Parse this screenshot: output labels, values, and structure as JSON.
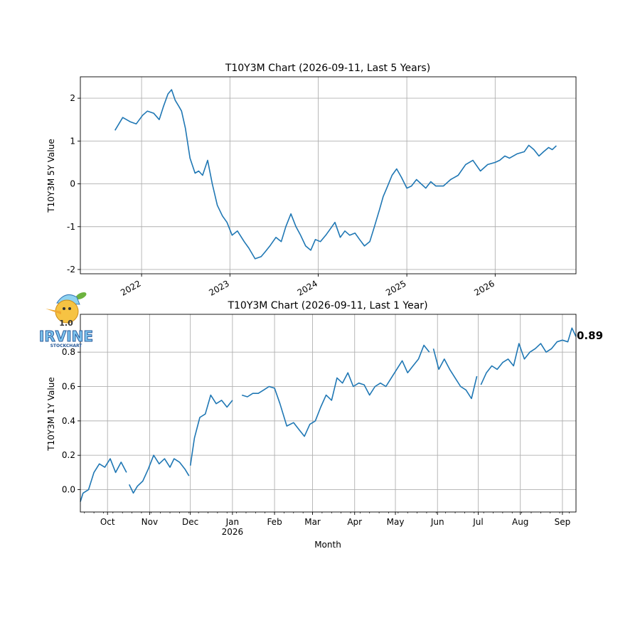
{
  "colors": {
    "line": "#1f77b4",
    "grid": "#b0b0b0"
  },
  "logo": {
    "text_version": "1.0",
    "text_brand": "IRVINE",
    "text_sub": "STOCKCHART"
  },
  "chart_data": [
    {
      "type": "line",
      "title": "T10Y3M Chart (2026-09-11, Last 5 Years)",
      "ylabel": "T10Y3M 5Y Value",
      "xlabel": "",
      "ylim": [
        -2.1,
        2.5
      ],
      "xlim": [
        "2021-04-23",
        "2026-12-01"
      ],
      "yticks": [
        -2,
        -1,
        0,
        1,
        2
      ],
      "xticks": [
        {
          "date": "2022-01-01",
          "label": "2022"
        },
        {
          "date": "2023-01-01",
          "label": "2023"
        },
        {
          "date": "2024-01-01",
          "label": "2024"
        },
        {
          "date": "2025-01-01",
          "label": "2025"
        },
        {
          "date": "2026-01-01",
          "label": "2026"
        }
      ],
      "grid": true,
      "series": [
        {
          "x": [
            "2021-09-13",
            "2021-10-15",
            "2021-11-15",
            "2021-12-10",
            "2022-01-05",
            "2022-01-25",
            "2022-02-20",
            "2022-03-15",
            "2022-04-01",
            "2022-04-20",
            "2022-05-05",
            "2022-05-20",
            "2022-06-05",
            "2022-06-15",
            "2022-07-01",
            "2022-07-20",
            "2022-08-10",
            "2022-08-25",
            "2022-09-10",
            "2022-10-01",
            "2022-10-20",
            "2022-11-10",
            "2022-12-01",
            "2022-12-20",
            "2023-01-10",
            "2023-02-01",
            "2023-03-01",
            "2023-03-20",
            "2023-04-15",
            "2023-05-10",
            "2023-05-25",
            "2023-06-15",
            "2023-07-10",
            "2023-08-01",
            "2023-08-20",
            "2023-09-10",
            "2023-10-01",
            "2023-10-20",
            "2023-11-10",
            "2023-12-01",
            "2023-12-20",
            "2024-01-10",
            "2024-02-01",
            "2024-02-20",
            "2024-03-10",
            "2024-04-01",
            "2024-04-20",
            "2024-05-10",
            "2024-06-01",
            "2024-06-20",
            "2024-07-10",
            "2024-08-01",
            "2024-08-20",
            "2024-09-10",
            "2024-09-25",
            "2024-10-10",
            "2024-11-01",
            "2024-11-20",
            "2024-12-10",
            "2025-01-01",
            "2025-01-20",
            "2025-02-10",
            "2025-03-01",
            "2025-03-20",
            "2025-04-10",
            "2025-05-01",
            "2025-06-01",
            "2025-07-01",
            "2025-08-01",
            "2025-09-01",
            "2025-10-01",
            "2025-11-01",
            "2025-12-01",
            "2026-01-01",
            "2026-01-20",
            "2026-02-10",
            "2026-03-01",
            "2026-04-01",
            "2026-05-01",
            "2026-05-20",
            "2026-06-10",
            "2026-07-01",
            "2026-07-20",
            "2026-08-10",
            "2026-08-25",
            "2026-09-11"
          ],
          "y": [
            1.25,
            1.55,
            1.45,
            1.4,
            1.6,
            1.7,
            1.65,
            1.5,
            1.8,
            2.1,
            2.2,
            1.95,
            1.8,
            1.7,
            1.3,
            0.6,
            0.25,
            0.3,
            0.2,
            0.55,
            0.0,
            -0.5,
            -0.75,
            -0.9,
            -1.2,
            -1.1,
            -1.35,
            -1.5,
            -1.75,
            -1.7,
            -1.6,
            -1.45,
            -1.25,
            -1.35,
            -1.0,
            -0.7,
            -1.0,
            -1.2,
            -1.45,
            -1.55,
            -1.3,
            -1.35,
            -1.2,
            -1.05,
            -0.9,
            -1.25,
            -1.1,
            -1.2,
            -1.15,
            -1.3,
            -1.45,
            -1.35,
            -1.0,
            -0.6,
            -0.3,
            -0.1,
            0.2,
            0.35,
            0.15,
            -0.1,
            -0.05,
            0.1,
            0.0,
            -0.1,
            0.05,
            -0.05,
            -0.05,
            0.1,
            0.2,
            0.45,
            0.55,
            0.3,
            0.45,
            0.5,
            0.55,
            0.65,
            0.6,
            0.7,
            0.75,
            0.9,
            0.8,
            0.65,
            0.75,
            0.85,
            0.8,
            0.89
          ]
        }
      ]
    },
    {
      "type": "line",
      "title": "T10Y3M Chart (2026-09-11, Last 1 Year)",
      "ylabel": "T10Y3M 1Y Value",
      "xlabel": "Month",
      "ylim": [
        -0.13,
        1.02
      ],
      "xlim": [
        "2025-09-11",
        "2026-09-11"
      ],
      "yticks": [
        0.0,
        0.2,
        0.4,
        0.6,
        0.8
      ],
      "xticks": [
        {
          "date": "2025-10-01",
          "label": "Oct",
          "sub": ""
        },
        {
          "date": "2025-11-01",
          "label": "Nov",
          "sub": ""
        },
        {
          "date": "2025-12-01",
          "label": "Dec",
          "sub": ""
        },
        {
          "date": "2026-01-01",
          "label": "Jan",
          "sub": "2026"
        },
        {
          "date": "2026-02-01",
          "label": "Feb",
          "sub": ""
        },
        {
          "date": "2026-03-01",
          "label": "Mar",
          "sub": ""
        },
        {
          "date": "2026-04-01",
          "label": "Apr",
          "sub": ""
        },
        {
          "date": "2026-05-01",
          "label": "May",
          "sub": ""
        },
        {
          "date": "2026-06-01",
          "label": "Jun",
          "sub": ""
        },
        {
          "date": "2026-07-01",
          "label": "Jul",
          "sub": ""
        },
        {
          "date": "2026-08-01",
          "label": "Aug",
          "sub": ""
        },
        {
          "date": "2026-09-01",
          "label": "Sep",
          "sub": ""
        }
      ],
      "grid": true,
      "last_value_label": "0.89",
      "series": [
        {
          "segments": [
            {
              "x": [
                "2025-09-11",
                "2025-09-13",
                "2025-09-17",
                "2025-09-21",
                "2025-09-25",
                "2025-09-29",
                "2025-10-03",
                "2025-10-07",
                "2025-10-11",
                "2025-10-15"
              ],
              "y": [
                -0.07,
                -0.02,
                0.0,
                0.1,
                0.15,
                0.13,
                0.18,
                0.1,
                0.16,
                0.1
              ]
            },
            {
              "x": [
                "2025-10-17",
                "2025-10-20",
                "2025-10-23",
                "2025-10-27",
                "2025-10-31",
                "2025-11-04",
                "2025-11-08",
                "2025-11-12",
                "2025-11-16",
                "2025-11-19",
                "2025-11-23",
                "2025-11-27",
                "2025-11-30"
              ],
              "y": [
                0.03,
                -0.02,
                0.02,
                0.05,
                0.12,
                0.2,
                0.15,
                0.18,
                0.13,
                0.18,
                0.16,
                0.12,
                0.08
              ]
            },
            {
              "x": [
                "2025-12-01",
                "2025-12-04",
                "2025-12-08",
                "2025-12-12",
                "2025-12-16",
                "2025-12-20",
                "2025-12-24",
                "2025-12-28",
                "2026-01-01"
              ],
              "y": [
                0.14,
                0.3,
                0.42,
                0.44,
                0.55,
                0.5,
                0.52,
                0.48,
                0.52
              ]
            },
            {
              "x": [
                "2026-01-08",
                "2026-01-12",
                "2026-01-16",
                "2026-01-20",
                "2026-01-24",
                "2026-01-28",
                "2026-02-01",
                "2026-02-05",
                "2026-02-10",
                "2026-02-15",
                "2026-02-19",
                "2026-02-23",
                "2026-02-27",
                "2026-03-03",
                "2026-03-07",
                "2026-03-11",
                "2026-03-15",
                "2026-03-19",
                "2026-03-23",
                "2026-03-27",
                "2026-03-31",
                "2026-04-04",
                "2026-04-08",
                "2026-04-12",
                "2026-04-16",
                "2026-04-20",
                "2026-04-24",
                "2026-04-28",
                "2026-05-02",
                "2026-05-06",
                "2026-05-10",
                "2026-05-14",
                "2026-05-18",
                "2026-05-22",
                "2026-05-26"
              ],
              "y": [
                0.55,
                0.54,
                0.56,
                0.56,
                0.58,
                0.6,
                0.59,
                0.5,
                0.37,
                0.39,
                0.35,
                0.31,
                0.38,
                0.4,
                0.48,
                0.55,
                0.52,
                0.65,
                0.62,
                0.68,
                0.6,
                0.62,
                0.61,
                0.55,
                0.6,
                0.62,
                0.6,
                0.65,
                0.7,
                0.75,
                0.68,
                0.72,
                0.76,
                0.84,
                0.8
              ]
            },
            {
              "x": [
                "2026-05-29",
                "2026-06-02",
                "2026-06-06",
                "2026-06-10",
                "2026-06-14",
                "2026-06-18",
                "2026-06-22",
                "2026-06-26",
                "2026-06-30"
              ],
              "y": [
                0.82,
                0.7,
                0.76,
                0.7,
                0.65,
                0.6,
                0.58,
                0.53,
                0.66
              ]
            },
            {
              "x": [
                "2026-07-03",
                "2026-07-07",
                "2026-07-11",
                "2026-07-15",
                "2026-07-19",
                "2026-07-23",
                "2026-07-27",
                "2026-07-31",
                "2026-08-04",
                "2026-08-08",
                "2026-08-12",
                "2026-08-16",
                "2026-08-20",
                "2026-08-24",
                "2026-08-28",
                "2026-09-01",
                "2026-09-05",
                "2026-09-08",
                "2026-09-11"
              ],
              "y": [
                0.61,
                0.68,
                0.72,
                0.7,
                0.74,
                0.76,
                0.72,
                0.85,
                0.76,
                0.8,
                0.82,
                0.85,
                0.8,
                0.82,
                0.86,
                0.87,
                0.86,
                0.94,
                0.89
              ]
            }
          ]
        }
      ]
    }
  ]
}
